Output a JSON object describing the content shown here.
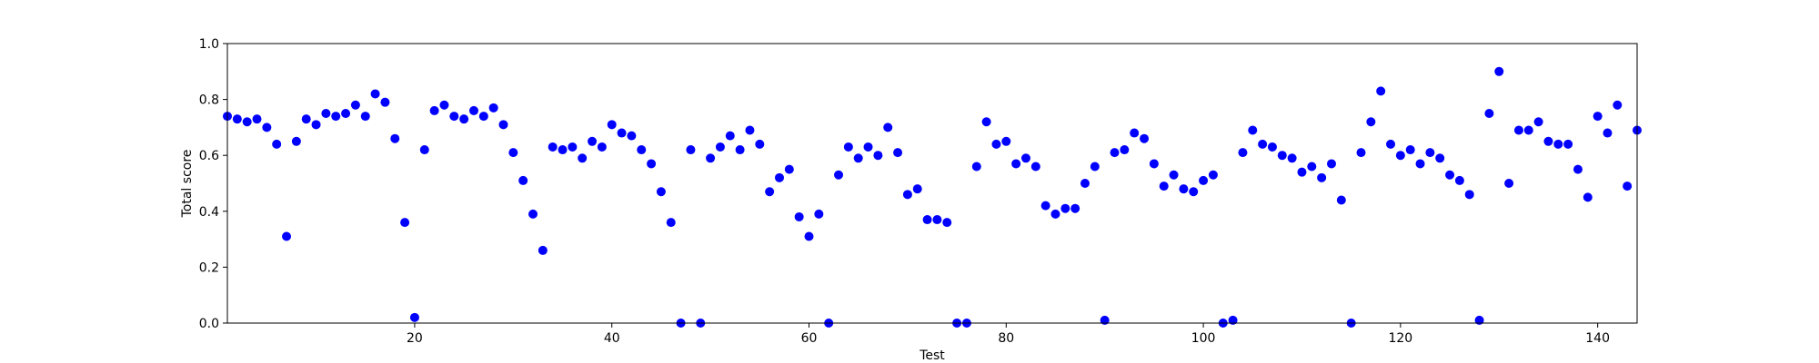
{
  "chart_data": {
    "type": "scatter",
    "xlabel": "Test",
    "ylabel": "Total score",
    "xlim": [
      1,
      144
    ],
    "ylim": [
      0.0,
      1.0
    ],
    "xticks": [
      20,
      40,
      60,
      80,
      100,
      120,
      140
    ],
    "yticks": [
      "0.0",
      "0.2",
      "0.4",
      "0.6",
      "0.8",
      "1.0"
    ],
    "grid": false,
    "marker_color": "#0000ff",
    "series": [
      {
        "x": [
          1,
          2,
          3,
          4,
          5,
          6,
          7,
          8,
          9,
          10,
          11,
          12,
          13,
          14,
          15,
          16,
          17,
          18,
          19,
          20,
          21,
          22,
          23,
          24,
          25,
          26,
          27,
          28,
          29,
          30,
          31,
          32,
          33,
          34,
          35,
          36,
          37,
          38,
          39,
          40,
          41,
          42,
          43,
          44,
          45,
          46,
          47,
          48,
          49,
          50,
          51,
          52,
          53,
          54,
          55,
          56,
          57,
          58,
          59,
          60,
          61,
          62,
          63,
          64,
          65,
          66,
          67,
          68,
          69,
          70,
          71,
          72,
          73,
          74,
          75,
          76,
          77,
          78,
          79,
          80,
          81,
          82,
          83,
          84,
          85,
          86,
          87,
          88,
          89,
          90,
          91,
          92,
          93,
          94,
          95,
          96,
          97,
          98,
          99,
          100,
          101,
          102,
          103,
          104,
          105,
          106,
          107,
          108,
          109,
          110,
          111,
          112,
          113,
          114,
          115,
          116,
          117,
          118,
          119,
          120,
          121,
          122,
          123,
          124,
          125,
          126,
          127,
          128,
          129,
          130,
          131,
          132,
          133,
          134,
          135,
          136,
          137,
          138,
          139,
          140,
          141,
          142,
          143,
          144
        ],
        "y": [
          0.74,
          0.73,
          0.72,
          0.73,
          0.7,
          0.64,
          0.31,
          0.65,
          0.73,
          0.71,
          0.75,
          0.74,
          0.75,
          0.78,
          0.74,
          0.82,
          0.79,
          0.66,
          0.36,
          0.02,
          0.62,
          0.76,
          0.78,
          0.74,
          0.73,
          0.76,
          0.74,
          0.77,
          0.71,
          0.61,
          0.51,
          0.39,
          0.26,
          0.63,
          0.62,
          0.63,
          0.59,
          0.65,
          0.63,
          0.71,
          0.68,
          0.67,
          0.62,
          0.57,
          0.47,
          0.36,
          0.0,
          0.62,
          0.0,
          0.59,
          0.63,
          0.67,
          0.62,
          0.69,
          0.64,
          0.47,
          0.52,
          0.55,
          0.38,
          0.31,
          0.39,
          0.0,
          0.53,
          0.63,
          0.59,
          0.63,
          0.6,
          0.7,
          0.61,
          0.46,
          0.48,
          0.37,
          0.37,
          0.36,
          0.0,
          0.0,
          0.56,
          0.72,
          0.64,
          0.65,
          0.57,
          0.59,
          0.56,
          0.42,
          0.39,
          0.41,
          0.41,
          0.5,
          0.56,
          0.01,
          0.61,
          0.62,
          0.68,
          0.66,
          0.57,
          0.49,
          0.53,
          0.48,
          0.47,
          0.51,
          0.53,
          0.0,
          0.01,
          0.61,
          0.69,
          0.64,
          0.63,
          0.6,
          0.59,
          0.54,
          0.56,
          0.52,
          0.57,
          0.44,
          0.0,
          0.61,
          0.72,
          0.83,
          0.64,
          0.6,
          0.62,
          0.57,
          0.61,
          0.59,
          0.53,
          0.51,
          0.46,
          0.01,
          0.75,
          0.9,
          0.5,
          0.69,
          0.69,
          0.72,
          0.65,
          0.64,
          0.64,
          0.55,
          0.45,
          0.74,
          0.68,
          0.78,
          0.49,
          0.69
        ]
      }
    ]
  }
}
